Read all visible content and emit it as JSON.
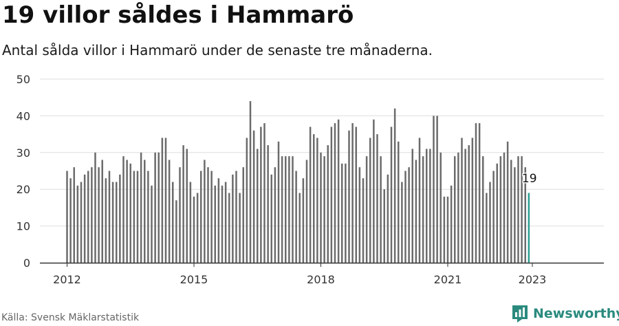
{
  "title": "19 villor såldes i Hammarö",
  "subtitle": "Antal sålda villor i Hammarö under de senaste tre månaderna.",
  "source": "Källa: Svensk Mäklarstatistik",
  "brand": {
    "name": "Newsworthy",
    "icon": "newsworthy-logo-icon",
    "color": "#2a8a7e"
  },
  "colors": {
    "bar": "#6b6b6b",
    "highlight": "#2a9d8f",
    "grid": "#dddddd",
    "axis": "#333333"
  },
  "chart_data": {
    "type": "bar",
    "ylim": [
      0,
      50
    ],
    "yticks": [
      0,
      10,
      20,
      30,
      40,
      50
    ],
    "xticks": [
      "2012",
      "2015",
      "2018",
      "2021",
      "2023"
    ],
    "grid": true,
    "start": "2012-01",
    "end": "2023-01",
    "highlight_label": "19",
    "values": [
      25,
      23,
      26,
      21,
      22,
      24,
      25,
      26,
      30,
      26,
      28,
      23,
      25,
      22,
      22,
      24,
      29,
      28,
      27,
      25,
      25,
      30,
      28,
      25,
      21,
      30,
      30,
      34,
      34,
      28,
      22,
      17,
      26,
      32,
      31,
      22,
      18,
      19,
      25,
      28,
      26,
      25,
      21,
      23,
      21,
      22,
      19,
      24,
      25,
      19,
      26,
      34,
      44,
      36,
      31,
      37,
      38,
      32,
      24,
      26,
      33,
      29,
      29,
      29,
      29,
      25,
      19,
      23,
      28,
      37,
      35,
      34,
      30,
      29,
      32,
      37,
      38,
      39,
      27,
      27,
      36,
      38,
      37,
      26,
      23,
      29,
      34,
      39,
      35,
      29,
      20,
      24,
      37,
      42,
      33,
      22,
      25,
      26,
      31,
      28,
      34,
      29,
      31,
      31,
      40,
      40,
      30,
      18,
      18,
      21,
      29,
      30,
      34,
      31,
      32,
      34,
      38,
      38,
      29,
      19,
      22,
      25,
      27,
      29,
      30,
      33,
      28,
      26,
      29,
      29,
      26,
      19
    ]
  }
}
